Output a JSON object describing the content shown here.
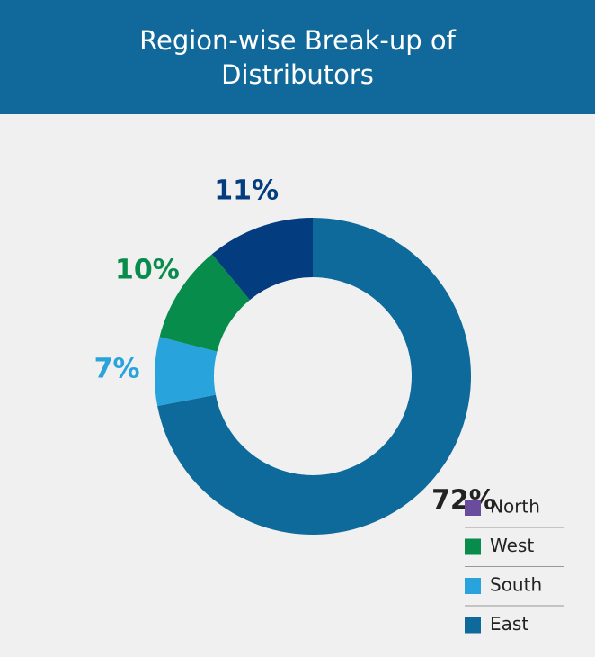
{
  "chart_data": {
    "type": "pie",
    "title": "Region-wise Break-up of Distributors",
    "values": [
      72,
      7,
      10,
      11
    ],
    "value_labels": [
      "72%",
      "7%",
      "10%",
      "11%"
    ],
    "colors": [
      "#0e6a9a",
      "#29a3dc",
      "#078c4c",
      "#033d7f"
    ],
    "label_colors": [
      "#222222",
      "#29a3dc",
      "#078c4c",
      "#033d7f"
    ],
    "legend": [
      {
        "name": "North",
        "color": "#6a4c9c"
      },
      {
        "name": "West",
        "color": "#078c4c"
      },
      {
        "name": "South",
        "color": "#29a3dc"
      },
      {
        "name": "East",
        "color": "#0e6a9a"
      }
    ]
  }
}
